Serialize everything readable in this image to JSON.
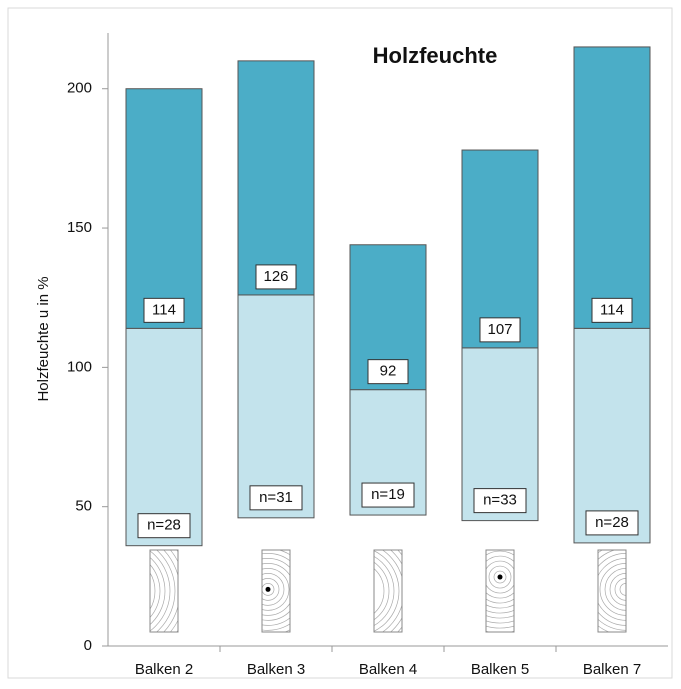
{
  "chart_data": {
    "type": "floating-bar",
    "title": "Holzfeuchte",
    "y_label": "Holzfeuchte u in %",
    "categories": [
      "Balken 2",
      "Balken 3",
      "Balken 4",
      "Balken 5",
      "Balken 7"
    ],
    "min": [
      36,
      46,
      47,
      45,
      37
    ],
    "median": [
      114,
      126,
      92,
      107,
      114
    ],
    "max": [
      200,
      210,
      144,
      178,
      215
    ],
    "n_labels": [
      "n=28",
      "n=31",
      "n=19",
      "n=33",
      "n=28"
    ],
    "colors": {
      "upper": "#4badc7",
      "lower": "#c3e3ec"
    },
    "ylim": [
      0,
      220
    ],
    "yticks": [
      0,
      50,
      100,
      150,
      200
    ]
  }
}
